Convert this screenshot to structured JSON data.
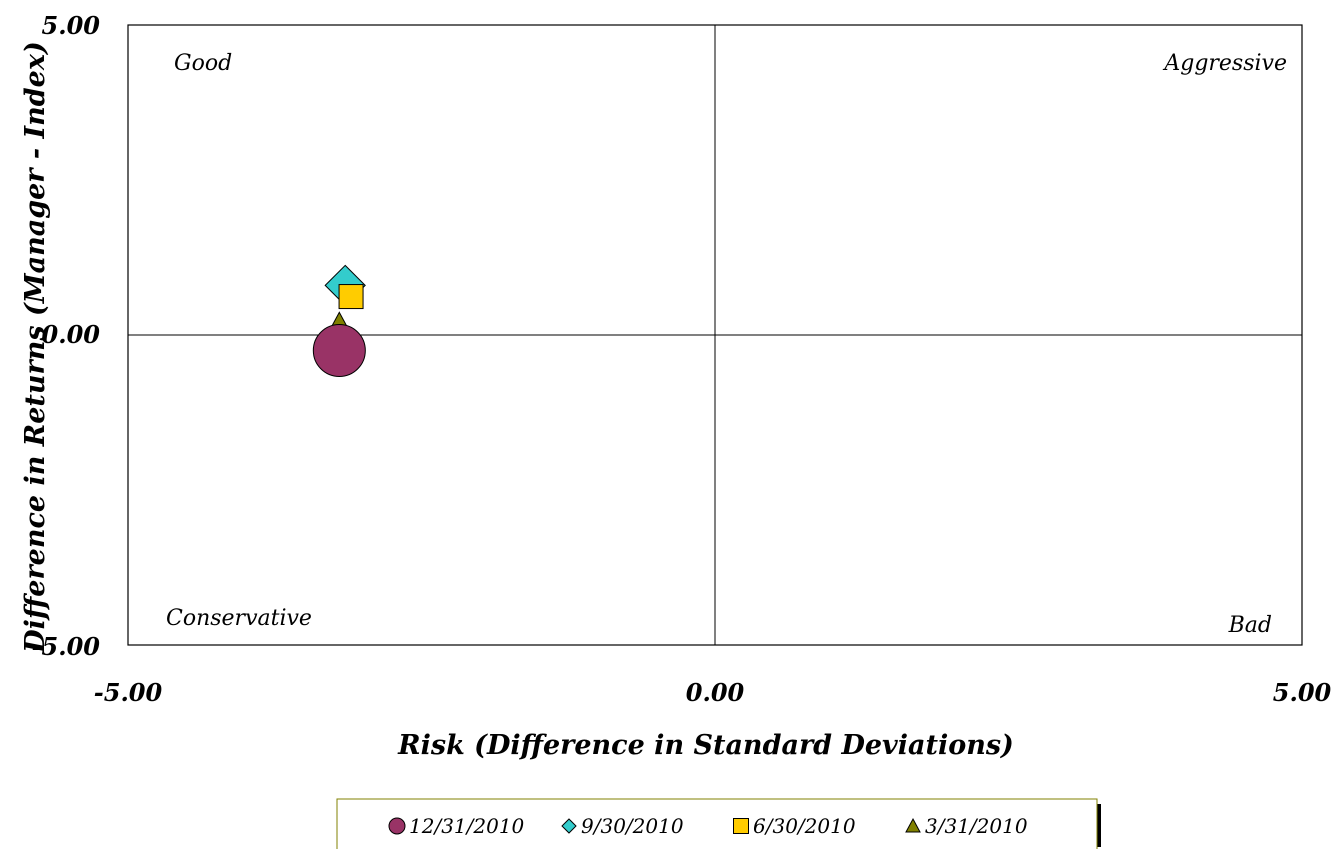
{
  "chart_data": {
    "type": "scatter",
    "xlabel": "Risk (Difference in Standard Deviations)",
    "ylabel": "Difference in Returns (Manager - Index)",
    "xlim": [
      -5,
      5
    ],
    "ylim": [
      -5,
      5
    ],
    "x_ticks": [
      "-5.00",
      "0.00",
      "5.00"
    ],
    "y_ticks": [
      "5.00",
      "0.00",
      "-5.00"
    ],
    "grid": false,
    "quadrant_labels": {
      "top_left": "Good",
      "top_right": "Aggressive",
      "bottom_left": "Conservative",
      "bottom_right": "Bad"
    },
    "legend_position": "bottom-center",
    "series": [
      {
        "name": "12/31/2010",
        "marker": "circle",
        "color": "#993366",
        "x": -3.2,
        "y": -0.25
      },
      {
        "name": "9/30/2010",
        "marker": "diamond",
        "color": "#33CCCC",
        "x": -3.15,
        "y": 0.8
      },
      {
        "name": "6/30/2010",
        "marker": "square",
        "color": "#FFCC00",
        "x": -3.1,
        "y": 0.62
      },
      {
        "name": "3/31/2010",
        "marker": "triangle",
        "color": "#808000",
        "x": -3.2,
        "y": 0.22
      }
    ]
  }
}
